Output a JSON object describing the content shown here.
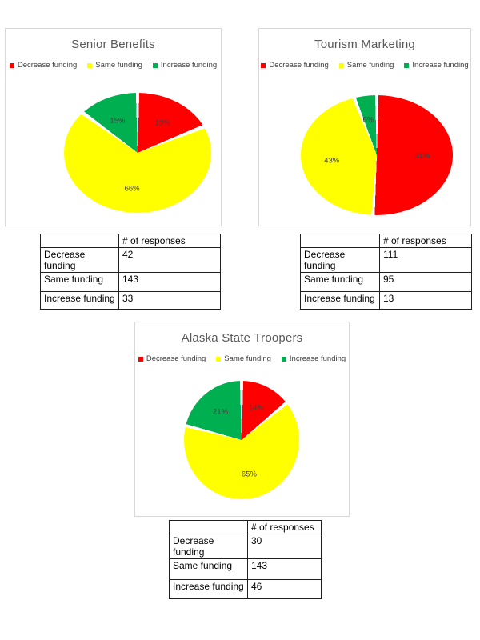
{
  "page_background": "#ffffff",
  "styles": {
    "slice_colors": {
      "decrease": "#ff0000",
      "same": "#ffff00",
      "increase": "#00b050"
    },
    "chart_title_color": "#595959",
    "legend_text_color": "#404040",
    "slice_label_color": "#3f3f3f",
    "card_border_color": "#d8d8d8",
    "table_border_color": "#1f1f1f"
  },
  "chart_data": [
    {
      "type": "pie",
      "title": "Senior Benefits",
      "categories": [
        "Decrease funding",
        "Same funding",
        "Increase funding"
      ],
      "values_pct": [
        19,
        66,
        15
      ],
      "slice_labels": [
        "19%",
        "66%",
        "15%"
      ],
      "colors": [
        "#ff0000",
        "#ffff00",
        "#00b050"
      ],
      "legend_position": "top",
      "table": {
        "header": "# of responses",
        "row_labels": [
          "Decrease\nfunding",
          "Same funding",
          "Increase funding"
        ],
        "responses": [
          "42",
          "143",
          "33"
        ]
      }
    },
    {
      "type": "pie",
      "title": "Tourism Marketing",
      "categories": [
        "Decrease funding",
        "Same funding",
        "Increase funding"
      ],
      "values_pct": [
        51,
        43,
        6
      ],
      "slice_labels": [
        "51%",
        "43%",
        "6%"
      ],
      "colors": [
        "#ff0000",
        "#ffff00",
        "#00b050"
      ],
      "legend_position": "top",
      "table": {
        "header": "# of responses",
        "row_labels": [
          "Decrease\nfunding",
          "Same funding",
          "Increase funding"
        ],
        "responses": [
          "111",
          "95",
          "13"
        ]
      }
    },
    {
      "type": "pie",
      "title": "Alaska State Troopers",
      "categories": [
        "Decrease funding",
        "Same funding",
        "Increase funding"
      ],
      "values_pct": [
        14,
        65,
        21
      ],
      "slice_labels": [
        "14%",
        "65%",
        "21%"
      ],
      "colors": [
        "#ff0000",
        "#ffff00",
        "#00b050"
      ],
      "legend_position": "top",
      "table": {
        "header": "# of responses",
        "row_labels": [
          "Decrease\nfunding",
          "Same funding",
          "Increase funding"
        ],
        "responses": [
          "30",
          "143",
          "46"
        ]
      }
    }
  ]
}
